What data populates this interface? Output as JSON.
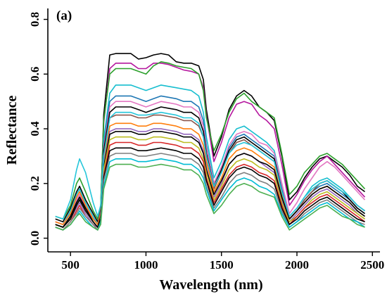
{
  "chart_data": {
    "type": "line",
    "panel_label": "(a)",
    "xlabel": "Wavelength (nm)",
    "ylabel": "Reflectance",
    "xlim": [
      350,
      2550
    ],
    "ylim": [
      -0.05,
      0.84
    ],
    "xticks": [
      500,
      1000,
      1500,
      2000,
      2500
    ],
    "yticks": [
      0.0,
      0.2,
      0.4,
      0.6,
      0.8
    ],
    "xtick_labels": [
      "500",
      "1000",
      "1500",
      "2000",
      "2500"
    ],
    "ytick_labels": [
      "0.0",
      "0.2",
      "0.4",
      "0.6",
      "0.8"
    ],
    "grid": false,
    "legend": "none",
    "wavelengths": [
      400,
      450,
      500,
      540,
      560,
      600,
      650,
      680,
      700,
      720,
      760,
      800,
      900,
      950,
      1000,
      1050,
      1100,
      1150,
      1200,
      1250,
      1300,
      1350,
      1380,
      1400,
      1450,
      1500,
      1550,
      1600,
      1650,
      1700,
      1750,
      1800,
      1850,
      1900,
      1950,
      2000,
      2050,
      2100,
      2150,
      2200,
      2250,
      2300,
      2350,
      2400,
      2450
    ],
    "series": [
      {
        "color": "#000000",
        "values": [
          0.07,
          0.06,
          0.11,
          0.17,
          0.19,
          0.14,
          0.09,
          0.06,
          0.11,
          0.45,
          0.67,
          0.675,
          0.675,
          0.655,
          0.66,
          0.67,
          0.675,
          0.67,
          0.645,
          0.64,
          0.64,
          0.63,
          0.58,
          0.47,
          0.3,
          0.37,
          0.47,
          0.52,
          0.54,
          0.52,
          0.48,
          0.46,
          0.43,
          0.3,
          0.14,
          0.17,
          0.22,
          0.26,
          0.29,
          0.3,
          0.28,
          0.26,
          0.23,
          0.19,
          0.17
        ]
      },
      {
        "color": "#b5179e",
        "values": [
          0.06,
          0.05,
          0.09,
          0.14,
          0.16,
          0.11,
          0.07,
          0.05,
          0.1,
          0.42,
          0.62,
          0.64,
          0.64,
          0.62,
          0.62,
          0.64,
          0.64,
          0.635,
          0.625,
          0.615,
          0.61,
          0.6,
          0.55,
          0.45,
          0.28,
          0.35,
          0.44,
          0.49,
          0.5,
          0.49,
          0.45,
          0.43,
          0.4,
          0.27,
          0.12,
          0.16,
          0.21,
          0.25,
          0.28,
          0.3,
          0.27,
          0.24,
          0.21,
          0.18,
          0.15
        ]
      },
      {
        "color": "#2ca02c",
        "values": [
          0.08,
          0.07,
          0.12,
          0.2,
          0.22,
          0.17,
          0.1,
          0.07,
          0.12,
          0.43,
          0.6,
          0.62,
          0.62,
          0.61,
          0.6,
          0.63,
          0.645,
          0.64,
          0.63,
          0.625,
          0.62,
          0.6,
          0.54,
          0.44,
          0.32,
          0.38,
          0.46,
          0.51,
          0.53,
          0.5,
          0.48,
          0.46,
          0.44,
          0.31,
          0.16,
          0.19,
          0.24,
          0.27,
          0.3,
          0.31,
          0.29,
          0.27,
          0.24,
          0.21,
          0.18
        ]
      },
      {
        "color": "#17becf",
        "values": [
          0.06,
          0.05,
          0.1,
          0.16,
          0.18,
          0.13,
          0.08,
          0.05,
          0.09,
          0.36,
          0.53,
          0.56,
          0.56,
          0.55,
          0.54,
          0.55,
          0.56,
          0.555,
          0.55,
          0.545,
          0.54,
          0.52,
          0.46,
          0.37,
          0.22,
          0.28,
          0.36,
          0.4,
          0.41,
          0.39,
          0.37,
          0.35,
          0.32,
          0.2,
          0.08,
          0.11,
          0.15,
          0.19,
          0.21,
          0.22,
          0.2,
          0.18,
          0.15,
          0.12,
          0.1
        ]
      },
      {
        "color": "#1f77b4",
        "values": [
          0.05,
          0.04,
          0.08,
          0.12,
          0.14,
          0.1,
          0.06,
          0.04,
          0.08,
          0.34,
          0.5,
          0.52,
          0.52,
          0.51,
          0.5,
          0.51,
          0.52,
          0.515,
          0.51,
          0.5,
          0.5,
          0.48,
          0.43,
          0.34,
          0.2,
          0.26,
          0.33,
          0.37,
          0.38,
          0.36,
          0.34,
          0.32,
          0.3,
          0.18,
          0.07,
          0.1,
          0.14,
          0.17,
          0.19,
          0.2,
          0.18,
          0.16,
          0.14,
          0.11,
          0.09
        ]
      },
      {
        "color": "#e377c2",
        "values": [
          0.06,
          0.05,
          0.09,
          0.14,
          0.16,
          0.12,
          0.07,
          0.05,
          0.09,
          0.33,
          0.48,
          0.5,
          0.5,
          0.49,
          0.48,
          0.49,
          0.5,
          0.495,
          0.49,
          0.48,
          0.48,
          0.46,
          0.41,
          0.33,
          0.2,
          0.26,
          0.34,
          0.38,
          0.39,
          0.38,
          0.35,
          0.34,
          0.31,
          0.2,
          0.09,
          0.13,
          0.18,
          0.22,
          0.26,
          0.28,
          0.26,
          0.23,
          0.2,
          0.17,
          0.14
        ]
      },
      {
        "color": "#000000",
        "values": [
          0.05,
          0.04,
          0.08,
          0.13,
          0.15,
          0.1,
          0.06,
          0.04,
          0.08,
          0.32,
          0.46,
          0.48,
          0.48,
          0.47,
          0.46,
          0.47,
          0.48,
          0.475,
          0.47,
          0.46,
          0.46,
          0.44,
          0.39,
          0.31,
          0.19,
          0.25,
          0.32,
          0.36,
          0.37,
          0.35,
          0.33,
          0.31,
          0.29,
          0.17,
          0.07,
          0.1,
          0.14,
          0.17,
          0.2,
          0.21,
          0.19,
          0.17,
          0.14,
          0.11,
          0.09
        ]
      },
      {
        "color": "#8c564b",
        "values": [
          0.05,
          0.04,
          0.08,
          0.12,
          0.14,
          0.1,
          0.06,
          0.04,
          0.08,
          0.3,
          0.44,
          0.45,
          0.45,
          0.44,
          0.44,
          0.45,
          0.45,
          0.445,
          0.44,
          0.43,
          0.43,
          0.41,
          0.37,
          0.3,
          0.18,
          0.24,
          0.31,
          0.35,
          0.36,
          0.34,
          0.32,
          0.3,
          0.28,
          0.17,
          0.07,
          0.1,
          0.14,
          0.17,
          0.2,
          0.21,
          0.19,
          0.17,
          0.15,
          0.12,
          0.1
        ]
      },
      {
        "color": "#ff7f0e",
        "values": [
          0.06,
          0.05,
          0.09,
          0.15,
          0.17,
          0.12,
          0.07,
          0.05,
          0.09,
          0.28,
          0.41,
          0.42,
          0.42,
          0.41,
          0.41,
          0.42,
          0.42,
          0.415,
          0.41,
          0.4,
          0.4,
          0.38,
          0.34,
          0.28,
          0.17,
          0.22,
          0.29,
          0.32,
          0.33,
          0.32,
          0.3,
          0.28,
          0.26,
          0.16,
          0.07,
          0.1,
          0.13,
          0.16,
          0.18,
          0.19,
          0.17,
          0.15,
          0.13,
          0.1,
          0.08
        ]
      },
      {
        "color": "#9467bd",
        "values": [
          0.05,
          0.04,
          0.07,
          0.11,
          0.13,
          0.09,
          0.05,
          0.04,
          0.07,
          0.27,
          0.39,
          0.4,
          0.4,
          0.39,
          0.39,
          0.4,
          0.4,
          0.395,
          0.39,
          0.38,
          0.38,
          0.36,
          0.32,
          0.26,
          0.15,
          0.2,
          0.27,
          0.3,
          0.31,
          0.3,
          0.28,
          0.26,
          0.24,
          0.14,
          0.06,
          0.09,
          0.12,
          0.15,
          0.17,
          0.18,
          0.16,
          0.14,
          0.12,
          0.09,
          0.07
        ]
      },
      {
        "color": "#000000",
        "values": [
          0.05,
          0.04,
          0.08,
          0.13,
          0.15,
          0.11,
          0.06,
          0.04,
          0.08,
          0.26,
          0.38,
          0.39,
          0.39,
          0.38,
          0.38,
          0.39,
          0.39,
          0.385,
          0.38,
          0.37,
          0.37,
          0.35,
          0.31,
          0.25,
          0.16,
          0.21,
          0.27,
          0.3,
          0.31,
          0.3,
          0.28,
          0.27,
          0.25,
          0.15,
          0.07,
          0.1,
          0.13,
          0.16,
          0.18,
          0.19,
          0.17,
          0.15,
          0.13,
          0.1,
          0.08
        ]
      },
      {
        "color": "#bcbd22",
        "values": [
          0.05,
          0.04,
          0.07,
          0.12,
          0.14,
          0.1,
          0.06,
          0.04,
          0.07,
          0.25,
          0.36,
          0.37,
          0.37,
          0.36,
          0.36,
          0.37,
          0.37,
          0.365,
          0.36,
          0.35,
          0.35,
          0.33,
          0.29,
          0.24,
          0.14,
          0.19,
          0.25,
          0.28,
          0.29,
          0.28,
          0.26,
          0.25,
          0.23,
          0.13,
          0.06,
          0.08,
          0.11,
          0.14,
          0.16,
          0.17,
          0.15,
          0.13,
          0.11,
          0.09,
          0.07
        ]
      },
      {
        "color": "#d62728",
        "values": [
          0.04,
          0.03,
          0.06,
          0.1,
          0.12,
          0.08,
          0.05,
          0.03,
          0.07,
          0.23,
          0.34,
          0.35,
          0.35,
          0.34,
          0.34,
          0.35,
          0.35,
          0.345,
          0.34,
          0.33,
          0.33,
          0.31,
          0.28,
          0.22,
          0.13,
          0.18,
          0.23,
          0.26,
          0.27,
          0.26,
          0.24,
          0.23,
          0.21,
          0.12,
          0.05,
          0.08,
          0.11,
          0.13,
          0.15,
          0.16,
          0.14,
          0.12,
          0.1,
          0.08,
          0.06
        ]
      },
      {
        "color": "#000000",
        "values": [
          0.05,
          0.04,
          0.07,
          0.12,
          0.14,
          0.1,
          0.06,
          0.04,
          0.07,
          0.22,
          0.32,
          0.33,
          0.33,
          0.32,
          0.32,
          0.325,
          0.33,
          0.325,
          0.32,
          0.31,
          0.31,
          0.29,
          0.26,
          0.21,
          0.12,
          0.17,
          0.22,
          0.25,
          0.26,
          0.25,
          0.23,
          0.22,
          0.2,
          0.11,
          0.05,
          0.07,
          0.1,
          0.12,
          0.14,
          0.15,
          0.13,
          0.11,
          0.09,
          0.07,
          0.06
        ]
      },
      {
        "color": "#7f7f7f",
        "values": [
          0.04,
          0.03,
          0.06,
          0.09,
          0.11,
          0.08,
          0.05,
          0.03,
          0.06,
          0.21,
          0.3,
          0.31,
          0.31,
          0.3,
          0.3,
          0.305,
          0.31,
          0.305,
          0.3,
          0.29,
          0.29,
          0.27,
          0.24,
          0.19,
          0.11,
          0.15,
          0.2,
          0.23,
          0.24,
          0.23,
          0.21,
          0.2,
          0.18,
          0.1,
          0.04,
          0.06,
          0.09,
          0.11,
          0.13,
          0.14,
          0.12,
          0.1,
          0.08,
          0.06,
          0.05
        ]
      },
      {
        "color": "#00bcd4",
        "values": [
          0.04,
          0.03,
          0.05,
          0.08,
          0.1,
          0.07,
          0.04,
          0.03,
          0.06,
          0.19,
          0.28,
          0.29,
          0.29,
          0.28,
          0.28,
          0.285,
          0.29,
          0.285,
          0.28,
          0.27,
          0.27,
          0.25,
          0.22,
          0.18,
          0.1,
          0.14,
          0.18,
          0.21,
          0.22,
          0.21,
          0.19,
          0.18,
          0.16,
          0.09,
          0.04,
          0.06,
          0.08,
          0.1,
          0.12,
          0.13,
          0.11,
          0.09,
          0.07,
          0.06,
          0.04
        ]
      },
      {
        "color": "#4caf50",
        "values": [
          0.04,
          0.03,
          0.05,
          0.08,
          0.09,
          0.06,
          0.04,
          0.03,
          0.05,
          0.18,
          0.26,
          0.27,
          0.27,
          0.26,
          0.26,
          0.265,
          0.27,
          0.265,
          0.26,
          0.25,
          0.25,
          0.23,
          0.2,
          0.16,
          0.09,
          0.12,
          0.16,
          0.19,
          0.2,
          0.19,
          0.17,
          0.16,
          0.15,
          0.08,
          0.03,
          0.05,
          0.07,
          0.09,
          0.11,
          0.12,
          0.1,
          0.08,
          0.07,
          0.05,
          0.04
        ]
      },
      {
        "color": "#26c6da",
        "values": [
          0.08,
          0.07,
          0.14,
          0.25,
          0.29,
          0.24,
          0.13,
          0.08,
          0.12,
          0.3,
          0.44,
          0.46,
          0.46,
          0.45,
          0.45,
          0.455,
          0.46,
          0.455,
          0.45,
          0.44,
          0.44,
          0.42,
          0.37,
          0.3,
          0.19,
          0.24,
          0.31,
          0.34,
          0.35,
          0.34,
          0.32,
          0.3,
          0.28,
          0.17,
          0.08,
          0.11,
          0.15,
          0.18,
          0.2,
          0.21,
          0.19,
          0.17,
          0.15,
          0.12,
          0.1
        ]
      }
    ]
  }
}
